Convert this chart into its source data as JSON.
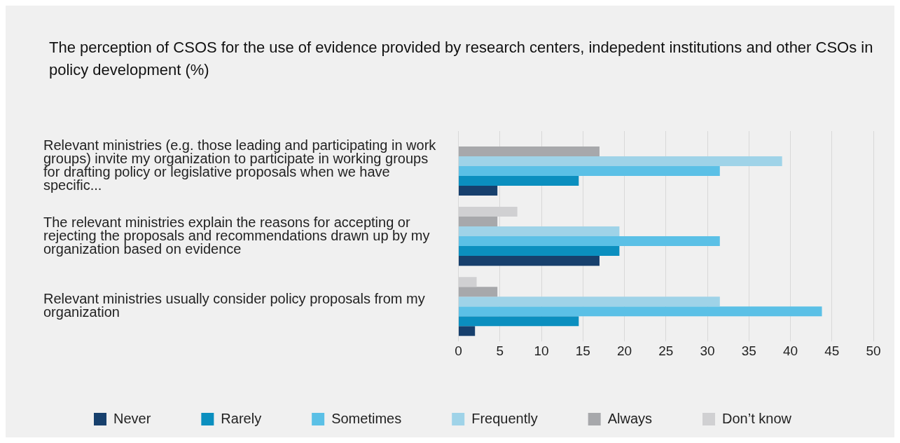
{
  "chart_data": {
    "type": "bar",
    "orientation": "horizontal",
    "title": "The perception of CSOS for the use of evidence provided by research centers, indepedent institutions and other CSOs in policy development (%)",
    "categories": [
      "Relevant ministries (e.g. those leading and participating in work groups) invite my organization to participate in working groups for drafting policy or legislative proposals when we have specific...",
      "The relevant ministries explain the reasons for accepting or rejecting the proposals and recommendations drawn up by my organization based on evidence",
      "Relevant ministries usually consider policy proposals from my organization"
    ],
    "series": [
      {
        "name": "Never",
        "color": "#17406d",
        "values": [
          4.7,
          17,
          2
        ]
      },
      {
        "name": "Rarely",
        "color": "#0b8fbf",
        "values": [
          14.5,
          19.4,
          14.5
        ]
      },
      {
        "name": "Sometimes",
        "color": "#5bc0e6",
        "values": [
          31.5,
          31.5,
          43.8
        ]
      },
      {
        "name": "Frequently",
        "color": "#9fd3e8",
        "values": [
          39,
          19.4,
          31.5
        ]
      },
      {
        "name": "Always",
        "color": "#a7a8ab",
        "values": [
          17,
          4.7,
          4.7
        ]
      },
      {
        "name": "Don’t know",
        "color": "#d0d0d2",
        "values": [
          null,
          7.1,
          2.2
        ]
      }
    ],
    "xlim": [
      0,
      50
    ],
    "xticks": [
      0,
      5,
      10,
      15,
      20,
      25,
      30,
      35,
      40,
      45,
      50
    ],
    "grid": "x",
    "legend": "bottom"
  }
}
